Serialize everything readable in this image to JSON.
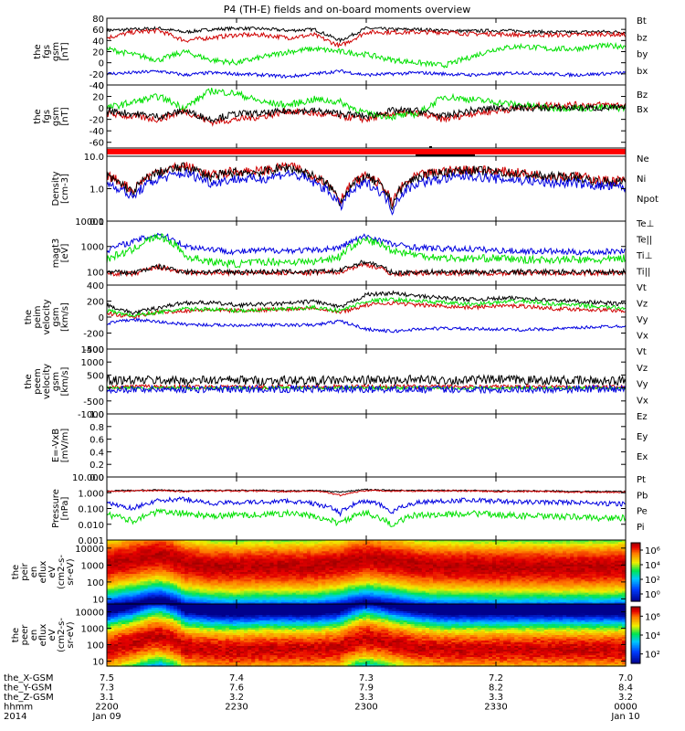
{
  "title": "P4 (TH-E) fields and on-board moments overview",
  "time_axis": {
    "ticks": [
      "2200",
      "2230",
      "2300",
      "2330",
      "0000"
    ],
    "tick_hours": [
      22.0,
      22.5,
      23.0,
      23.5,
      24.0
    ],
    "range_hours": [
      22.0,
      24.0
    ],
    "rows": [
      {
        "label": "the_X-GSM",
        "values": [
          "7.5",
          "7.4",
          "7.3",
          "7.2",
          "7.0"
        ]
      },
      {
        "label": "the_Y-GSM",
        "values": [
          "7.3",
          "7.6",
          "7.9",
          "8.2",
          "8.4"
        ]
      },
      {
        "label": "the_Z-GSM",
        "values": [
          "3.1",
          "3.2",
          "3.3",
          "3.3",
          "3.2"
        ]
      },
      {
        "label": "hhmm",
        "values": [
          "2200",
          "2230",
          "2300",
          "2330",
          "0000"
        ]
      },
      {
        "label": "2014",
        "values": [
          "Jan 09",
          "",
          "",
          "",
          "Jan 10"
        ]
      }
    ]
  },
  "colors": {
    "black": "#000000",
    "red": "#d00000",
    "green": "#00e000",
    "blue": "#0000e0",
    "bar_red": "#ff0000"
  },
  "chart_data": [
    {
      "type": "line",
      "ylabel": [
        "the",
        "fgs",
        "gsm",
        "[nT]"
      ],
      "ylim": [
        -40,
        80
      ],
      "ticks": [
        80,
        60,
        40,
        20,
        0,
        -20,
        -40
      ],
      "series": [
        {
          "name": "Bt",
          "color": "black",
          "base": [
            58,
            60,
            62,
            55,
            60,
            62,
            61,
            58,
            60,
            40,
            62,
            60,
            60,
            58,
            57,
            58,
            57,
            55,
            55,
            56,
            55
          ],
          "noise": 3
        },
        {
          "name": "bz",
          "color": "red",
          "base": [
            45,
            55,
            58,
            40,
            45,
            50,
            50,
            45,
            50,
            30,
            55,
            55,
            55,
            55,
            52,
            52,
            50,
            50,
            50,
            52,
            50
          ],
          "noise": 4
        },
        {
          "name": "by",
          "color": "green",
          "base": [
            25,
            15,
            5,
            20,
            5,
            0,
            10,
            20,
            25,
            20,
            15,
            5,
            0,
            -5,
            10,
            25,
            30,
            25,
            25,
            30,
            30
          ],
          "noise": 5
        },
        {
          "name": "bx",
          "color": "blue",
          "base": [
            -20,
            -18,
            -15,
            -22,
            -18,
            -20,
            -22,
            -25,
            -20,
            -15,
            -22,
            -20,
            -18,
            -20,
            -22,
            -20,
            -18,
            -20,
            -22,
            -20,
            -18
          ],
          "noise": 3
        }
      ]
    },
    {
      "type": "line",
      "ylabel": [
        "the",
        "fgs",
        "gsm",
        "[nT]"
      ],
      "ylim": [
        -70,
        40
      ],
      "ticks": [
        40,
        20,
        0,
        -20,
        -40,
        -60
      ],
      "series": [
        {
          "name": "Bz",
          "color": "red",
          "base": [
            -10,
            -15,
            -20,
            -5,
            -25,
            -20,
            -15,
            -5,
            -10,
            -15,
            -20,
            -10,
            -10,
            -20,
            -10,
            -5,
            0,
            5,
            5,
            5,
            5
          ],
          "noise": 6
        },
        {
          "name": "Bx",
          "color": "green",
          "base": [
            0,
            10,
            20,
            0,
            30,
            25,
            10,
            5,
            15,
            10,
            -10,
            -15,
            -10,
            20,
            15,
            10,
            5,
            0,
            0,
            0,
            0
          ],
          "noise": 6
        },
        {
          "name": "",
          "color": "black",
          "base": [
            -5,
            -10,
            -15,
            -5,
            -20,
            -10,
            -10,
            -5,
            -5,
            -10,
            -15,
            -5,
            -5,
            -15,
            -5,
            0,
            0,
            0,
            0,
            0,
            0
          ],
          "noise": 6
        }
      ]
    },
    {
      "type": "bar",
      "ylabel": [],
      "ylim": [
        0,
        1
      ],
      "ticks": []
    },
    {
      "type": "line",
      "log": true,
      "ylabel": [
        "Density",
        "[cm-3]"
      ],
      "ylim": [
        0.1,
        10.0
      ],
      "ticks": [
        10.0,
        1.0,
        0.1
      ],
      "tick_labels": [
        "10.0",
        "1.0",
        "0.1"
      ],
      "series": [
        {
          "name": "Ne",
          "color": "red",
          "base": [
            2.5,
            0.8,
            3.5,
            5,
            2.5,
            3.5,
            3.5,
            5,
            2.5,
            0.4,
            2.5,
            0.3,
            2.5,
            3.5,
            4,
            3.5,
            3,
            2.5,
            2.5,
            1.8,
            1.8
          ],
          "noise": 0.15
        },
        {
          "name": "Ni",
          "color": "black",
          "base": [
            2.3,
            0.7,
            3.2,
            4.6,
            2.3,
            3.2,
            3.2,
            4.6,
            2.3,
            0.35,
            2.3,
            0.28,
            2.3,
            3.2,
            3.7,
            3.2,
            2.8,
            2.3,
            2.3,
            1.6,
            1.6
          ],
          "noise": 0.15
        },
        {
          "name": "Npot",
          "color": "blue",
          "base": [
            1.5,
            0.5,
            2,
            3,
            1.5,
            2,
            2,
            3,
            1.5,
            0.25,
            1.5,
            0.2,
            1.5,
            2,
            2.5,
            2,
            1.8,
            1.5,
            1.5,
            1.2,
            1.1
          ],
          "noise": 0.15
        }
      ]
    },
    {
      "type": "line",
      "log": true,
      "ylabel": [
        "magt3",
        "[eV]"
      ],
      "ylim": [
        30,
        10000
      ],
      "ticks": [
        10000,
        1000,
        100
      ],
      "tick_labels": [
        "10000",
        "1000",
        "100"
      ],
      "series": [
        {
          "name": "Te⊥",
          "color": "red",
          "base": [
            90,
            80,
            150,
            90,
            90,
            90,
            90,
            90,
            90,
            100,
            200,
            80,
            90,
            90,
            90,
            90,
            90,
            90,
            90,
            90,
            90
          ],
          "noise": 0.1
        },
        {
          "name": "Te||",
          "color": "black",
          "base": [
            100,
            90,
            160,
            100,
            100,
            100,
            100,
            100,
            100,
            110,
            250,
            90,
            100,
            100,
            100,
            100,
            100,
            100,
            100,
            100,
            100
          ],
          "noise": 0.1
        },
        {
          "name": "Ti⊥",
          "color": "blue",
          "base": [
            700,
            1500,
            3000,
            1000,
            800,
            600,
            700,
            700,
            700,
            900,
            2500,
            1200,
            900,
            800,
            800,
            700,
            650,
            650,
            600,
            600,
            700
          ],
          "noise": 0.12
        },
        {
          "name": "Ti||",
          "color": "green",
          "base": [
            300,
            700,
            2500,
            400,
            250,
            200,
            250,
            250,
            250,
            400,
            1800,
            700,
            450,
            350,
            330,
            350,
            300,
            300,
            300,
            280,
            350
          ],
          "noise": 0.15
        }
      ]
    },
    {
      "type": "line",
      "ylabel": [
        "the",
        "peim",
        "velocity",
        "gsm",
        "[km/s]"
      ],
      "ylim": [
        -400,
        400
      ],
      "ticks": [
        400,
        200,
        0,
        -200,
        -400
      ],
      "series": [
        {
          "name": "Vt",
          "color": "black",
          "base": [
            150,
            50,
            120,
            180,
            180,
            150,
            160,
            170,
            200,
            120,
            280,
            300,
            260,
            240,
            220,
            230,
            240,
            210,
            200,
            180,
            160
          ],
          "noise": 25
        },
        {
          "name": "Vz",
          "color": "red",
          "base": [
            50,
            0,
            60,
            80,
            90,
            80,
            90,
            100,
            120,
            60,
            150,
            180,
            150,
            140,
            120,
            140,
            140,
            110,
            100,
            90,
            80
          ],
          "noise": 25
        },
        {
          "name": "Vy",
          "color": "green",
          "base": [
            80,
            20,
            60,
            100,
            100,
            80,
            90,
            100,
            120,
            80,
            200,
            220,
            200,
            180,
            160,
            180,
            200,
            170,
            150,
            130,
            110
          ],
          "noise": 25
        },
        {
          "name": "Vx",
          "color": "blue",
          "base": [
            -80,
            -30,
            -60,
            -90,
            -100,
            -100,
            -100,
            -100,
            -100,
            -50,
            -150,
            -180,
            -150,
            -140,
            -150,
            -150,
            -160,
            -150,
            -140,
            -120,
            -110
          ],
          "noise": 20
        }
      ]
    },
    {
      "type": "line",
      "ylabel": [
        "the",
        "peem",
        "velocity",
        "gsm",
        "[km/s]"
      ],
      "ylim": [
        -1000,
        1500
      ],
      "ticks": [
        1500,
        1000,
        500,
        0,
        -500,
        -1000
      ],
      "series": [
        {
          "name": "Vt",
          "color": "black",
          "base": [
            300,
            300,
            300,
            280,
            300,
            300,
            280,
            300,
            280,
            300,
            300,
            300,
            320,
            300,
            300,
            320,
            300,
            300,
            280,
            280,
            280
          ],
          "noise": 180
        },
        {
          "name": "Vz",
          "color": "red",
          "base": [
            50,
            50,
            50,
            40,
            50,
            50,
            40,
            50,
            40,
            50,
            50,
            50,
            50,
            50,
            50,
            50,
            50,
            50,
            40,
            40,
            40
          ],
          "noise": 80
        },
        {
          "name": "Vy",
          "color": "green",
          "base": [
            0,
            0,
            0,
            0,
            0,
            0,
            0,
            0,
            0,
            0,
            0,
            0,
            0,
            0,
            0,
            0,
            0,
            0,
            0,
            0,
            0
          ],
          "noise": 60
        },
        {
          "name": "Vx",
          "color": "blue",
          "base": [
            -50,
            -50,
            -50,
            -40,
            -50,
            -50,
            -40,
            -50,
            -40,
            -50,
            -50,
            -50,
            -50,
            -50,
            -50,
            -50,
            -50,
            -50,
            -40,
            -40,
            -40
          ],
          "noise": 140
        }
      ]
    },
    {
      "type": "line",
      "ylabel": [
        "E=-VxB",
        "[mV/m]"
      ],
      "ylim": [
        0.0,
        1.0
      ],
      "ticks": [
        1.0,
        0.8,
        0.6,
        0.4,
        0.2,
        0.0
      ],
      "tick_labels": [
        "1.0",
        "0.8",
        "0.6",
        "0.4",
        "0.2",
        "0.0"
      ],
      "series": [
        {
          "name": "Ez",
          "color": "red",
          "base": [],
          "noise": 0
        },
        {
          "name": "Ey",
          "color": "green",
          "base": [],
          "noise": 0
        },
        {
          "name": "Ex",
          "color": "blue",
          "base": [],
          "noise": 0
        }
      ]
    },
    {
      "type": "line",
      "log": true,
      "ylabel": [
        "Pressure",
        "[nPa]"
      ],
      "ylim": [
        0.001,
        10.0
      ],
      "ticks": [
        10.0,
        1.0,
        0.1,
        0.01,
        0.001
      ],
      "tick_labels": [
        "10.000",
        "1.000",
        "0.100",
        "0.010",
        "0.001"
      ],
      "series": [
        {
          "name": "Pt",
          "color": "black",
          "base": [
            1.3,
            1.4,
            1.5,
            1.3,
            1.4,
            1.4,
            1.4,
            1.3,
            1.4,
            1.1,
            1.6,
            1.4,
            1.4,
            1.4,
            1.4,
            1.3,
            1.3,
            1.3,
            1.2,
            1.2,
            1.2
          ],
          "noise": 0.04
        },
        {
          "name": "Pb",
          "color": "red",
          "base": [
            1.2,
            1.3,
            1.4,
            1.2,
            1.3,
            1.3,
            1.3,
            1.2,
            1.3,
            0.7,
            1.4,
            1.3,
            1.3,
            1.3,
            1.3,
            1.2,
            1.2,
            1.2,
            1.1,
            1.1,
            1.1
          ],
          "noise": 0.05
        },
        {
          "name": "Pe",
          "color": "green",
          "base": [
            0.04,
            0.015,
            0.06,
            0.05,
            0.03,
            0.04,
            0.04,
            0.05,
            0.03,
            0.01,
            0.05,
            0.006,
            0.04,
            0.04,
            0.05,
            0.04,
            0.035,
            0.03,
            0.03,
            0.025,
            0.025
          ],
          "noise": 0.2
        },
        {
          "name": "Pi",
          "color": "blue",
          "base": [
            0.2,
            0.1,
            0.3,
            0.4,
            0.2,
            0.25,
            0.25,
            0.3,
            0.2,
            0.05,
            0.3,
            0.05,
            0.25,
            0.3,
            0.35,
            0.3,
            0.25,
            0.25,
            0.25,
            0.2,
            0.2
          ],
          "noise": 0.15
        }
      ]
    },
    {
      "type": "heatmap",
      "log": true,
      "ylabel": [
        "the",
        "peir",
        "en",
        "eflux",
        "eV",
        "(cm2-s-",
        "sr-eV)"
      ],
      "ylim": [
        5,
        30000
      ],
      "ticks": [
        10000,
        1000,
        100,
        10
      ],
      "tick_labels": [
        "10000",
        "1000",
        "100",
        "10"
      ],
      "colorbar": {
        "ticks": [
          "10⁶",
          "10⁴",
          "10²",
          "10⁰"
        ],
        "tick_exp": [
          6,
          4,
          2,
          0
        ],
        "range_exp": [
          -1,
          7
        ]
      },
      "peak_energy": [
        1500,
        2500,
        5000,
        1500,
        1000,
        900,
        1000,
        1000,
        1000,
        1500,
        3000,
        2000,
        1200,
        1000,
        1000,
        900,
        900,
        900,
        900,
        900,
        1000
      ]
    },
    {
      "type": "heatmap",
      "log": true,
      "ylabel": [
        "the",
        "peer",
        "en",
        "eflux",
        "eV",
        "(cm2-s-",
        "sr-eV)"
      ],
      "ylim": [
        5,
        30000
      ],
      "ticks": [
        10000,
        1000,
        100,
        10
      ],
      "tick_labels": [
        "10000",
        "1000",
        "100",
        "10"
      ],
      "colorbar": {
        "ticks": [
          "10⁶",
          "10⁴",
          "10²"
        ],
        "tick_exp": [
          6,
          4,
          2
        ],
        "range_exp": [
          1,
          7
        ]
      },
      "peak_energy": [
        60,
        150,
        400,
        80,
        60,
        50,
        60,
        60,
        60,
        80,
        300,
        150,
        80,
        60,
        60,
        60,
        60,
        60,
        60,
        60,
        60
      ]
    }
  ]
}
